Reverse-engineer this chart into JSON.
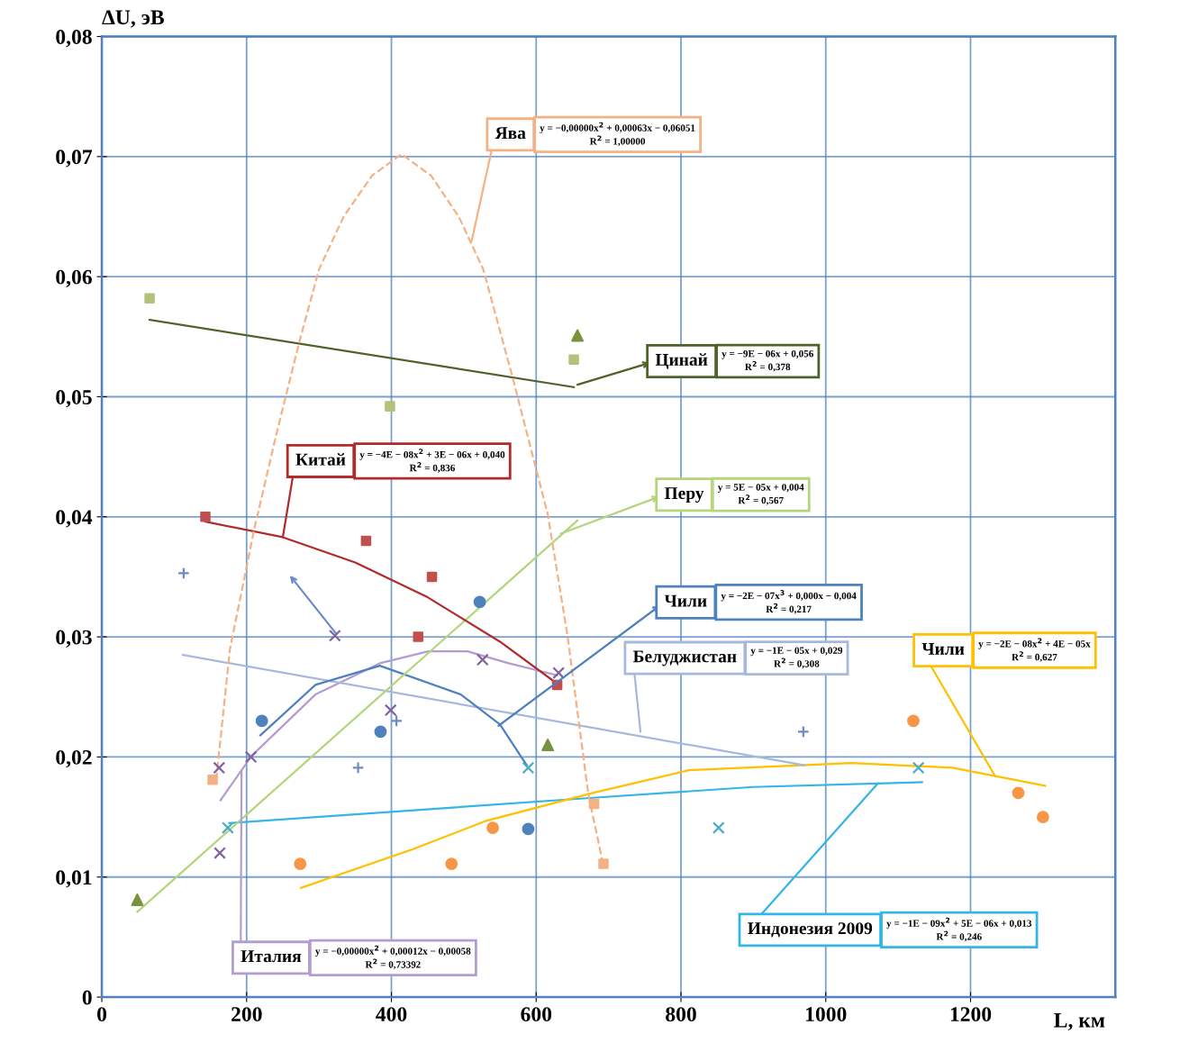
{
  "chart_data": {
    "type": "scatter",
    "xlabel": "L, км",
    "ylabel": "ΔU, эВ",
    "xlim": [
      0,
      1400
    ],
    "ylim": [
      0,
      0.08
    ],
    "xticks": [
      0,
      200,
      400,
      600,
      800,
      1000,
      1200
    ],
    "yticks": [
      {
        "value": 0,
        "label": "0"
      },
      {
        "value": 0.01,
        "label": "0,01"
      },
      {
        "value": 0.02,
        "label": "0,02"
      },
      {
        "value": 0.03,
        "label": "0,03"
      },
      {
        "value": 0.04,
        "label": "0,04"
      },
      {
        "value": 0.05,
        "label": "0,05"
      },
      {
        "value": 0.06,
        "label": "0,06"
      },
      {
        "value": 0.07,
        "label": "0,07"
      },
      {
        "value": 0.08,
        "label": "0,08"
      }
    ],
    "grid": true,
    "series": [
      {
        "marker": "square",
        "color": "#f4b183",
        "x": [
          153,
          680,
          693
        ],
        "values": [
          0.0181,
          0.0161,
          0.0111
        ]
      },
      {
        "marker": "square",
        "color": "#b3c27a",
        "x": [
          66,
          398,
          652
        ],
        "values": [
          0.0582,
          0.0492,
          0.0531
        ]
      },
      {
        "marker": "square",
        "color": "#c0504d",
        "x": [
          143,
          365,
          456,
          437,
          629
        ],
        "values": [
          0.04,
          0.038,
          0.035,
          0.03,
          0.026
        ]
      },
      {
        "marker": "triangle",
        "color": "#77933c",
        "x": [
          49,
          616,
          657
        ],
        "values": [
          0.0081,
          0.021,
          0.0551
        ]
      },
      {
        "marker": "circle",
        "color": "#4f81bd",
        "x": [
          221,
          385,
          522,
          589
        ],
        "values": [
          0.023,
          0.0221,
          0.0329,
          0.014
        ]
      },
      {
        "marker": "plus",
        "color": "#6a8cc7",
        "x": [
          113,
          354,
          407,
          969
        ],
        "values": [
          0.0353,
          0.0191,
          0.023,
          0.0221
        ]
      },
      {
        "marker": "circle",
        "color": "#f79646",
        "x": [
          274,
          483,
          540,
          1121,
          1266,
          1300
        ],
        "values": [
          0.0111,
          0.0111,
          0.0141,
          0.023,
          0.017,
          0.015
        ]
      },
      {
        "marker": "x",
        "color": "#4bacc6",
        "x": [
          174,
          589,
          852,
          1128
        ],
        "values": [
          0.0141,
          0.0191,
          0.0141,
          0.0191
        ]
      },
      {
        "marker": "x",
        "color": "#8064a2",
        "x": [
          162,
          163,
          206,
          322,
          399,
          526,
          631
        ],
        "values": [
          0.0191,
          0.012,
          0.02,
          0.0301,
          0.0239,
          0.0281,
          0.027
        ]
      },
      {
        "type": "line",
        "line_style": "dashed",
        "color": "#f4b183",
        "x": [
          158,
          177,
          211,
          242,
          273,
          300,
          334,
          373,
          414,
          455,
          493,
          527,
          567,
          616,
          643,
          672,
          692
        ],
        "values": [
          0.0181,
          0.029,
          0.0391,
          0.0471,
          0.0546,
          0.0606,
          0.065,
          0.0684,
          0.0702,
          0.0684,
          0.065,
          0.0606,
          0.0517,
          0.0402,
          0.0302,
          0.0169,
          0.0112
        ]
      },
      {
        "type": "line",
        "line_style": "solid",
        "color": "#4f6228",
        "x": [
          66,
          652
        ],
        "values": [
          0.0564,
          0.0508
        ]
      },
      {
        "type": "line",
        "line_style": "solid",
        "color": "#b22a2a",
        "x": [
          143,
          250,
          350,
          450,
          550,
          629
        ],
        "values": [
          0.0396,
          0.0383,
          0.0362,
          0.0333,
          0.0296,
          0.0261
        ]
      },
      {
        "type": "line",
        "line_style": "solid",
        "color": "#b3d67b",
        "x": [
          49,
          657
        ],
        "values": [
          0.0071,
          0.0397
        ]
      },
      {
        "type": "line",
        "line_style": "solid",
        "color": "#4f81bd",
        "x": [
          219,
          295,
          384,
          496,
          550,
          587
        ],
        "values": [
          0.0218,
          0.026,
          0.0276,
          0.0252,
          0.0227,
          0.0193
        ]
      },
      {
        "type": "line",
        "line_style": "solid",
        "color": "#a6b9dd",
        "x": [
          112,
          971
        ],
        "values": [
          0.0285,
          0.0193
        ]
      },
      {
        "type": "line",
        "line_style": "solid",
        "color": "#ffc000",
        "x": [
          275,
          429,
          532,
          678,
          811,
          1036,
          1175,
          1303
        ],
        "values": [
          0.0091,
          0.0123,
          0.0147,
          0.017,
          0.0189,
          0.0195,
          0.0191,
          0.0176
        ]
      },
      {
        "type": "line",
        "line_style": "solid",
        "color": "#33b5e5",
        "x": [
          176,
          678,
          900,
          1133
        ],
        "values": [
          0.0145,
          0.0166,
          0.0175,
          0.0179
        ]
      },
      {
        "type": "line",
        "line_style": "solid",
        "color": "#b39cd0",
        "x": [
          164,
          207,
          295,
          384,
          451,
          505,
          562,
          629
        ],
        "values": [
          0.0164,
          0.0201,
          0.0252,
          0.0278,
          0.0288,
          0.0288,
          0.0278,
          0.0268
        ]
      }
    ],
    "annotations": [
      {
        "text": "Ява",
        "x": 511,
        "y": 0.063
      },
      "y = −0,00000x$^{2}$ + 0,00063x − 0,06051\nR$^{2}$ = 1,00000",
      {
        "text": "Цинай",
        "x": 657,
        "y": 0.051
      },
      "y = −9E − 06x + 0,056\nR$^{2}$ = 0,378",
      {
        "text": "Китай",
        "x": 250,
        "y": 0.0383
      },
      "y = −4E − 08x$^{2}$ + 3E − 06x + 0,040\nR$^{2}$ = 0,836",
      {
        "text": "Перу",
        "x": 634,
        "y": 0.0386
      },
      "y = 5E − 05x + 0,004\nR$^{2}$ = 0,567",
      {
        "text": "Чили",
        "x": 548,
        "y": 0.0226
      },
      "y = −2E − 07x$^{3}$ + 0,000x − 0,004\nR$^{2}$ = 0,217",
      {
        "text": "Белуджистан",
        "x": 744,
        "y": 0.0221
      },
      "y = −1E − 05x + 0,029\nR$^{2}$ = 0,308",
      {
        "text": "Чили",
        "x": 1234,
        "y": 0.0184
      },
      "y = −2E − 08x$^{2}$ + 4E − 05x\nR$^{2}$ = 0,627",
      {
        "text": "Индонезия 2009",
        "x": 1072,
        "y": 0.0178
      },
      "y = −1E − 09x$^{2}$ + 5E − 06x + 0,013\nR$^{2}$ = 0,246",
      {
        "text": "Италия",
        "x": 193,
        "y": 0.0189
      },
      "y = −0,00000x$^{2}$ + 0,00012x − 0,00058\nR$^{2}$ = 0,73392"
    ]
  }
}
